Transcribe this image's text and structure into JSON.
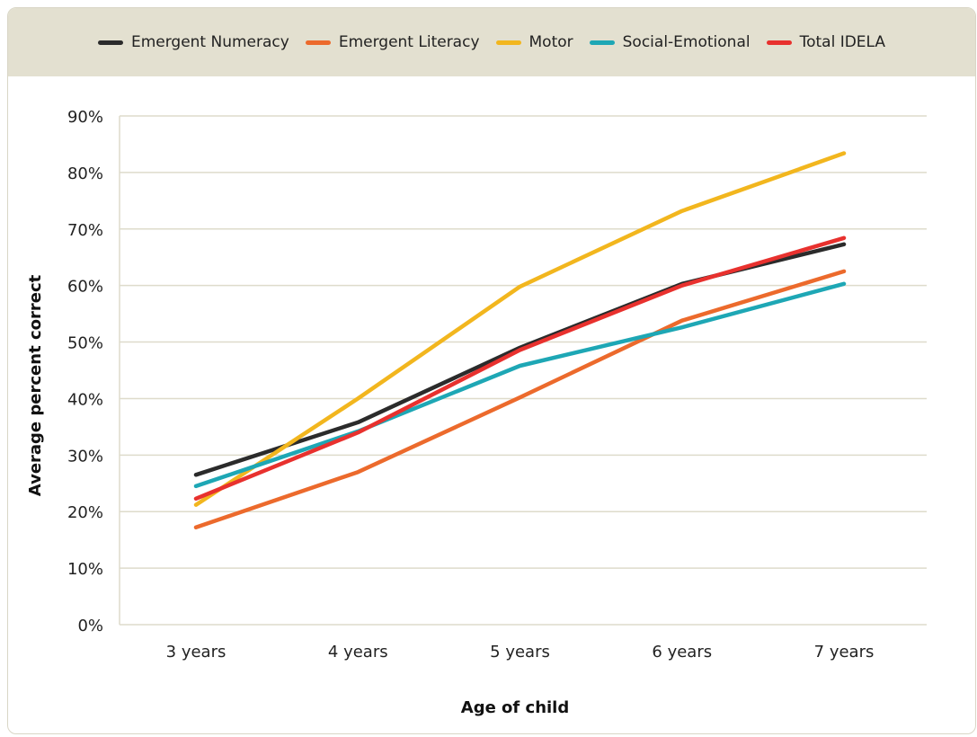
{
  "chart_data": {
    "type": "line",
    "x": [
      "3 years",
      "4 years",
      "5 years",
      "6 years",
      "7 years"
    ],
    "xlabel": "Age of child",
    "ylabel": "Average percent correct",
    "ylim": [
      0,
      90
    ],
    "yticks": [
      "0%",
      "10%",
      "20%",
      "30%",
      "40%",
      "50%",
      "60%",
      "70%",
      "80%",
      "90%"
    ],
    "grid": "horizontal",
    "legend_position": "top",
    "series": [
      {
        "name": "Emergent Numeracy",
        "color": "#2b2b2b",
        "values": [
          26.5,
          35.8,
          49.0,
          60.3,
          67.3
        ]
      },
      {
        "name": "Emergent Literacy",
        "color": "#ec6a2c",
        "values": [
          17.2,
          27.0,
          40.2,
          53.8,
          62.5
        ]
      },
      {
        "name": "Motor",
        "color": "#f2b61e",
        "values": [
          21.2,
          40.0,
          59.8,
          73.2,
          83.4
        ]
      },
      {
        "name": "Social-Emotional",
        "color": "#1ea7b5",
        "values": [
          24.5,
          34.2,
          45.8,
          52.6,
          60.3
        ]
      },
      {
        "name": "Total IDELA",
        "color": "#e8312e",
        "values": [
          22.3,
          34.0,
          48.6,
          60.0,
          68.4
        ]
      }
    ]
  }
}
